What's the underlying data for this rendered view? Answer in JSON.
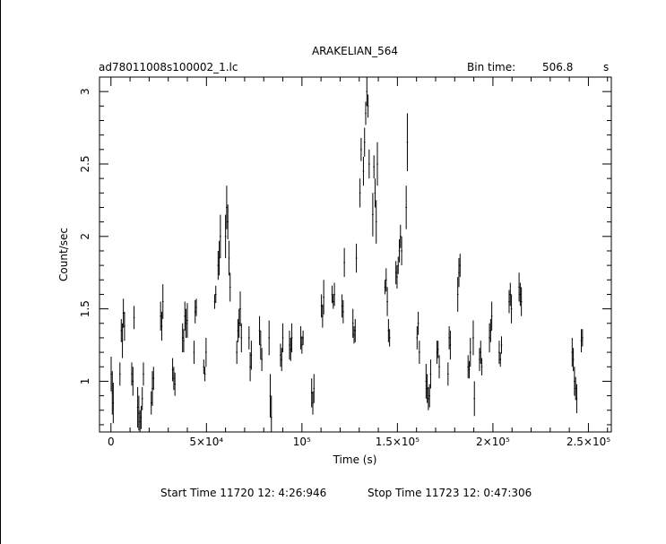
{
  "header": {
    "title": "ARAKELIAN_564",
    "filename": "ad78011008s100002_1.lc",
    "bin_label": "Bin time:",
    "bin_value": "506.8",
    "bin_unit": "s"
  },
  "footer": {
    "start_time": "Start Time 11720 12: 4:26:946",
    "stop_time": "Stop Time 11723 12: 0:47:306"
  },
  "chart_data": {
    "type": "scatter",
    "title": "ARAKELIAN_564",
    "xlabel": "Time (s)",
    "ylabel": "Count/sec",
    "xlim": [
      -6000,
      262000
    ],
    "ylim": [
      0.65,
      3.1
    ],
    "x_ticks": [
      {
        "value": 0,
        "label": "0"
      },
      {
        "value": 50000,
        "label": "5×10⁴"
      },
      {
        "value": 100000,
        "label": "10⁵"
      },
      {
        "value": 150000,
        "label": "1.5×10⁵"
      },
      {
        "value": 200000,
        "label": "2×10⁵"
      },
      {
        "value": 250000,
        "label": "2.5×10⁵"
      }
    ],
    "y_ticks": [
      {
        "value": 1,
        "label": "1"
      },
      {
        "value": 1.5,
        "label": "1.5"
      },
      {
        "value": 2,
        "label": "2"
      },
      {
        "value": 2.5,
        "label": "2.5"
      },
      {
        "value": 3,
        "label": "3"
      }
    ],
    "series": [
      {
        "values": [
          {
            "x": 100,
            "y": 1.05,
            "err": 0.12
          },
          {
            "x": 700,
            "y": 0.92,
            "err": 0.15
          },
          {
            "x": 1200,
            "y": 0.85,
            "err": 0.14
          },
          {
            "x": 4700,
            "y": 1.05,
            "err": 0.08
          },
          {
            "x": 5400,
            "y": 1.35,
            "err": 0.08
          },
          {
            "x": 6000,
            "y": 1.28,
            "err": 0.12
          },
          {
            "x": 6500,
            "y": 1.47,
            "err": 0.1
          },
          {
            "x": 7100,
            "y": 1.38,
            "err": 0.1
          },
          {
            "x": 10900,
            "y": 1.05,
            "err": 0.08
          },
          {
            "x": 11500,
            "y": 1.0,
            "err": 0.1
          },
          {
            "x": 12100,
            "y": 1.44,
            "err": 0.08
          },
          {
            "x": 14000,
            "y": 0.82,
            "err": 0.14
          },
          {
            "x": 14600,
            "y": 0.78,
            "err": 0.12
          },
          {
            "x": 15200,
            "y": 0.72,
            "err": 0.08
          },
          {
            "x": 15800,
            "y": 0.75,
            "err": 0.08
          },
          {
            "x": 16400,
            "y": 0.88,
            "err": 0.08
          },
          {
            "x": 17000,
            "y": 1.05,
            "err": 0.08
          },
          {
            "x": 21100,
            "y": 0.85,
            "err": 0.08
          },
          {
            "x": 21700,
            "y": 0.95,
            "err": 0.12
          },
          {
            "x": 22300,
            "y": 1.02,
            "err": 0.08
          },
          {
            "x": 26000,
            "y": 1.45,
            "err": 0.1
          },
          {
            "x": 26600,
            "y": 1.38,
            "err": 0.1
          },
          {
            "x": 27200,
            "y": 1.55,
            "err": 0.12
          },
          {
            "x": 32300,
            "y": 1.08,
            "err": 0.08
          },
          {
            "x": 32900,
            "y": 1.02,
            "err": 0.08
          },
          {
            "x": 33500,
            "y": 0.98,
            "err": 0.08
          },
          {
            "x": 37500,
            "y": 1.3,
            "err": 0.1
          },
          {
            "x": 38100,
            "y": 1.28,
            "err": 0.08
          },
          {
            "x": 38700,
            "y": 1.45,
            "err": 0.1
          },
          {
            "x": 39300,
            "y": 1.4,
            "err": 0.1
          },
          {
            "x": 40000,
            "y": 1.42,
            "err": 0.12
          },
          {
            "x": 43500,
            "y": 1.2,
            "err": 0.08
          },
          {
            "x": 44100,
            "y": 1.48,
            "err": 0.08
          },
          {
            "x": 44700,
            "y": 1.51,
            "err": 0.06
          },
          {
            "x": 48600,
            "y": 1.1,
            "err": 0.05
          },
          {
            "x": 49200,
            "y": 1.05,
            "err": 0.05
          },
          {
            "x": 49800,
            "y": 1.2,
            "err": 0.1
          },
          {
            "x": 54300,
            "y": 1.55,
            "err": 0.05
          },
          {
            "x": 54900,
            "y": 1.6,
            "err": 0.06
          },
          {
            "x": 56100,
            "y": 1.8,
            "err": 0.1
          },
          {
            "x": 56700,
            "y": 1.85,
            "err": 0.12
          },
          {
            "x": 57300,
            "y": 2.0,
            "err": 0.15
          },
          {
            "x": 60000,
            "y": 2.0,
            "err": 0.15
          },
          {
            "x": 60600,
            "y": 2.2,
            "err": 0.15
          },
          {
            "x": 61200,
            "y": 2.1,
            "err": 0.12
          },
          {
            "x": 61800,
            "y": 1.85,
            "err": 0.12
          },
          {
            "x": 62400,
            "y": 1.65,
            "err": 0.1
          },
          {
            "x": 65900,
            "y": 1.2,
            "err": 0.08
          },
          {
            "x": 66500,
            "y": 1.35,
            "err": 0.08
          },
          {
            "x": 67100,
            "y": 1.4,
            "err": 0.1
          },
          {
            "x": 67700,
            "y": 1.5,
            "err": 0.12
          },
          {
            "x": 68300,
            "y": 1.3,
            "err": 0.1
          },
          {
            "x": 72300,
            "y": 1.3,
            "err": 0.08
          },
          {
            "x": 72900,
            "y": 1.1,
            "err": 0.1
          },
          {
            "x": 73500,
            "y": 1.18,
            "err": 0.1
          },
          {
            "x": 77800,
            "y": 1.35,
            "err": 0.1
          },
          {
            "x": 78400,
            "y": 1.25,
            "err": 0.1
          },
          {
            "x": 79000,
            "y": 1.15,
            "err": 0.08
          },
          {
            "x": 82800,
            "y": 1.3,
            "err": 0.12
          },
          {
            "x": 83400,
            "y": 0.9,
            "err": 0.15
          },
          {
            "x": 84000,
            "y": 0.75,
            "err": 0.15
          },
          {
            "x": 88800,
            "y": 1.18,
            "err": 0.08
          },
          {
            "x": 89400,
            "y": 1.15,
            "err": 0.08
          },
          {
            "x": 90000,
            "y": 1.3,
            "err": 0.1
          },
          {
            "x": 93500,
            "y": 1.25,
            "err": 0.1
          },
          {
            "x": 94100,
            "y": 1.22,
            "err": 0.08
          },
          {
            "x": 94700,
            "y": 1.3,
            "err": 0.1
          },
          {
            "x": 99400,
            "y": 1.3,
            "err": 0.08
          },
          {
            "x": 100000,
            "y": 1.25,
            "err": 0.06
          },
          {
            "x": 100600,
            "y": 1.3,
            "err": 0.05
          },
          {
            "x": 105100,
            "y": 0.92,
            "err": 0.1
          },
          {
            "x": 105700,
            "y": 0.85,
            "err": 0.08
          },
          {
            "x": 106300,
            "y": 0.95,
            "err": 0.1
          },
          {
            "x": 110200,
            "y": 1.52,
            "err": 0.08
          },
          {
            "x": 110800,
            "y": 1.45,
            "err": 0.08
          },
          {
            "x": 111400,
            "y": 1.58,
            "err": 0.12
          },
          {
            "x": 115800,
            "y": 1.6,
            "err": 0.06
          },
          {
            "x": 116400,
            "y": 1.55,
            "err": 0.05
          },
          {
            "x": 117000,
            "y": 1.6,
            "err": 0.08
          },
          {
            "x": 121000,
            "y": 1.52,
            "err": 0.08
          },
          {
            "x": 121600,
            "y": 1.48,
            "err": 0.08
          },
          {
            "x": 122200,
            "y": 1.82,
            "err": 0.1
          },
          {
            "x": 126700,
            "y": 1.4,
            "err": 0.1
          },
          {
            "x": 127300,
            "y": 1.32,
            "err": 0.06
          },
          {
            "x": 127900,
            "y": 1.35,
            "err": 0.08
          },
          {
            "x": 128500,
            "y": 1.85,
            "err": 0.1
          },
          {
            "x": 130400,
            "y": 2.3,
            "err": 0.1
          },
          {
            "x": 131000,
            "y": 2.6,
            "err": 0.08
          },
          {
            "x": 132200,
            "y": 2.45,
            "err": 0.1
          },
          {
            "x": 132800,
            "y": 2.65,
            "err": 0.1
          },
          {
            "x": 133400,
            "y": 2.85,
            "err": 0.08
          },
          {
            "x": 134000,
            "y": 3.0,
            "err": 0.1
          },
          {
            "x": 134600,
            "y": 2.9,
            "err": 0.08
          },
          {
            "x": 135200,
            "y": 2.5,
            "err": 0.1
          },
          {
            "x": 137100,
            "y": 2.15,
            "err": 0.15
          },
          {
            "x": 137700,
            "y": 2.48,
            "err": 0.08
          },
          {
            "x": 138300,
            "y": 2.3,
            "err": 0.1
          },
          {
            "x": 138900,
            "y": 2.1,
            "err": 0.15
          },
          {
            "x": 139500,
            "y": 2.5,
            "err": 0.15
          },
          {
            "x": 143500,
            "y": 1.65,
            "err": 0.05
          },
          {
            "x": 144100,
            "y": 1.7,
            "err": 0.08
          },
          {
            "x": 144700,
            "y": 1.55,
            "err": 0.1
          },
          {
            "x": 145300,
            "y": 1.35,
            "err": 0.08
          },
          {
            "x": 145900,
            "y": 1.3,
            "err": 0.06
          },
          {
            "x": 149200,
            "y": 1.75,
            "err": 0.08
          },
          {
            "x": 149800,
            "y": 1.72,
            "err": 0.08
          },
          {
            "x": 150400,
            "y": 1.8,
            "err": 0.06
          },
          {
            "x": 151000,
            "y": 1.9,
            "err": 0.08
          },
          {
            "x": 151600,
            "y": 2.0,
            "err": 0.08
          },
          {
            "x": 152200,
            "y": 1.9,
            "err": 0.1
          },
          {
            "x": 154600,
            "y": 2.2,
            "err": 0.15
          },
          {
            "x": 155200,
            "y": 2.65,
            "err": 0.2
          },
          {
            "x": 160300,
            "y": 1.3,
            "err": 0.08
          },
          {
            "x": 160900,
            "y": 1.4,
            "err": 0.08
          },
          {
            "x": 161500,
            "y": 1.2,
            "err": 0.08
          },
          {
            "x": 165000,
            "y": 1.0,
            "err": 0.12
          },
          {
            "x": 165600,
            "y": 0.95,
            "err": 0.1
          },
          {
            "x": 166200,
            "y": 0.88,
            "err": 0.08
          },
          {
            "x": 166800,
            "y": 0.9,
            "err": 0.08
          },
          {
            "x": 167400,
            "y": 1.05,
            "err": 0.1
          },
          {
            "x": 170700,
            "y": 1.2,
            "err": 0.08
          },
          {
            "x": 171300,
            "y": 1.22,
            "err": 0.06
          },
          {
            "x": 171900,
            "y": 1.1,
            "err": 0.08
          },
          {
            "x": 176500,
            "y": 1.05,
            "err": 0.08
          },
          {
            "x": 177100,
            "y": 1.3,
            "err": 0.08
          },
          {
            "x": 177700,
            "y": 1.25,
            "err": 0.1
          },
          {
            "x": 181600,
            "y": 1.6,
            "err": 0.12
          },
          {
            "x": 182200,
            "y": 1.75,
            "err": 0.1
          },
          {
            "x": 182800,
            "y": 1.8,
            "err": 0.08
          },
          {
            "x": 187000,
            "y": 1.1,
            "err": 0.08
          },
          {
            "x": 187600,
            "y": 1.08,
            "err": 0.06
          },
          {
            "x": 188200,
            "y": 1.2,
            "err": 0.1
          },
          {
            "x": 189700,
            "y": 1.3,
            "err": 0.12
          },
          {
            "x": 190300,
            "y": 0.88,
            "err": 0.12
          },
          {
            "x": 193000,
            "y": 1.15,
            "err": 0.08
          },
          {
            "x": 193600,
            "y": 1.2,
            "err": 0.08
          },
          {
            "x": 194200,
            "y": 1.1,
            "err": 0.06
          },
          {
            "x": 198200,
            "y": 1.3,
            "err": 0.1
          },
          {
            "x": 198800,
            "y": 1.35,
            "err": 0.08
          },
          {
            "x": 199400,
            "y": 1.45,
            "err": 0.1
          },
          {
            "x": 203300,
            "y": 1.2,
            "err": 0.08
          },
          {
            "x": 203900,
            "y": 1.15,
            "err": 0.05
          },
          {
            "x": 204500,
            "y": 1.25,
            "err": 0.06
          },
          {
            "x": 208500,
            "y": 1.55,
            "err": 0.08
          },
          {
            "x": 209100,
            "y": 1.6,
            "err": 0.08
          },
          {
            "x": 209700,
            "y": 1.5,
            "err": 0.1
          },
          {
            "x": 213700,
            "y": 1.65,
            "err": 0.1
          },
          {
            "x": 214300,
            "y": 1.6,
            "err": 0.08
          },
          {
            "x": 214900,
            "y": 1.55,
            "err": 0.1
          },
          {
            "x": 241500,
            "y": 1.2,
            "err": 0.1
          },
          {
            "x": 242100,
            "y": 1.15,
            "err": 0.08
          },
          {
            "x": 242700,
            "y": 1.0,
            "err": 0.1
          },
          {
            "x": 243300,
            "y": 0.95,
            "err": 0.08
          },
          {
            "x": 243900,
            "y": 0.88,
            "err": 0.1
          },
          {
            "x": 246300,
            "y": 1.28,
            "err": 0.08
          },
          {
            "x": 246900,
            "y": 1.3,
            "err": 0.06
          }
        ]
      }
    ]
  }
}
